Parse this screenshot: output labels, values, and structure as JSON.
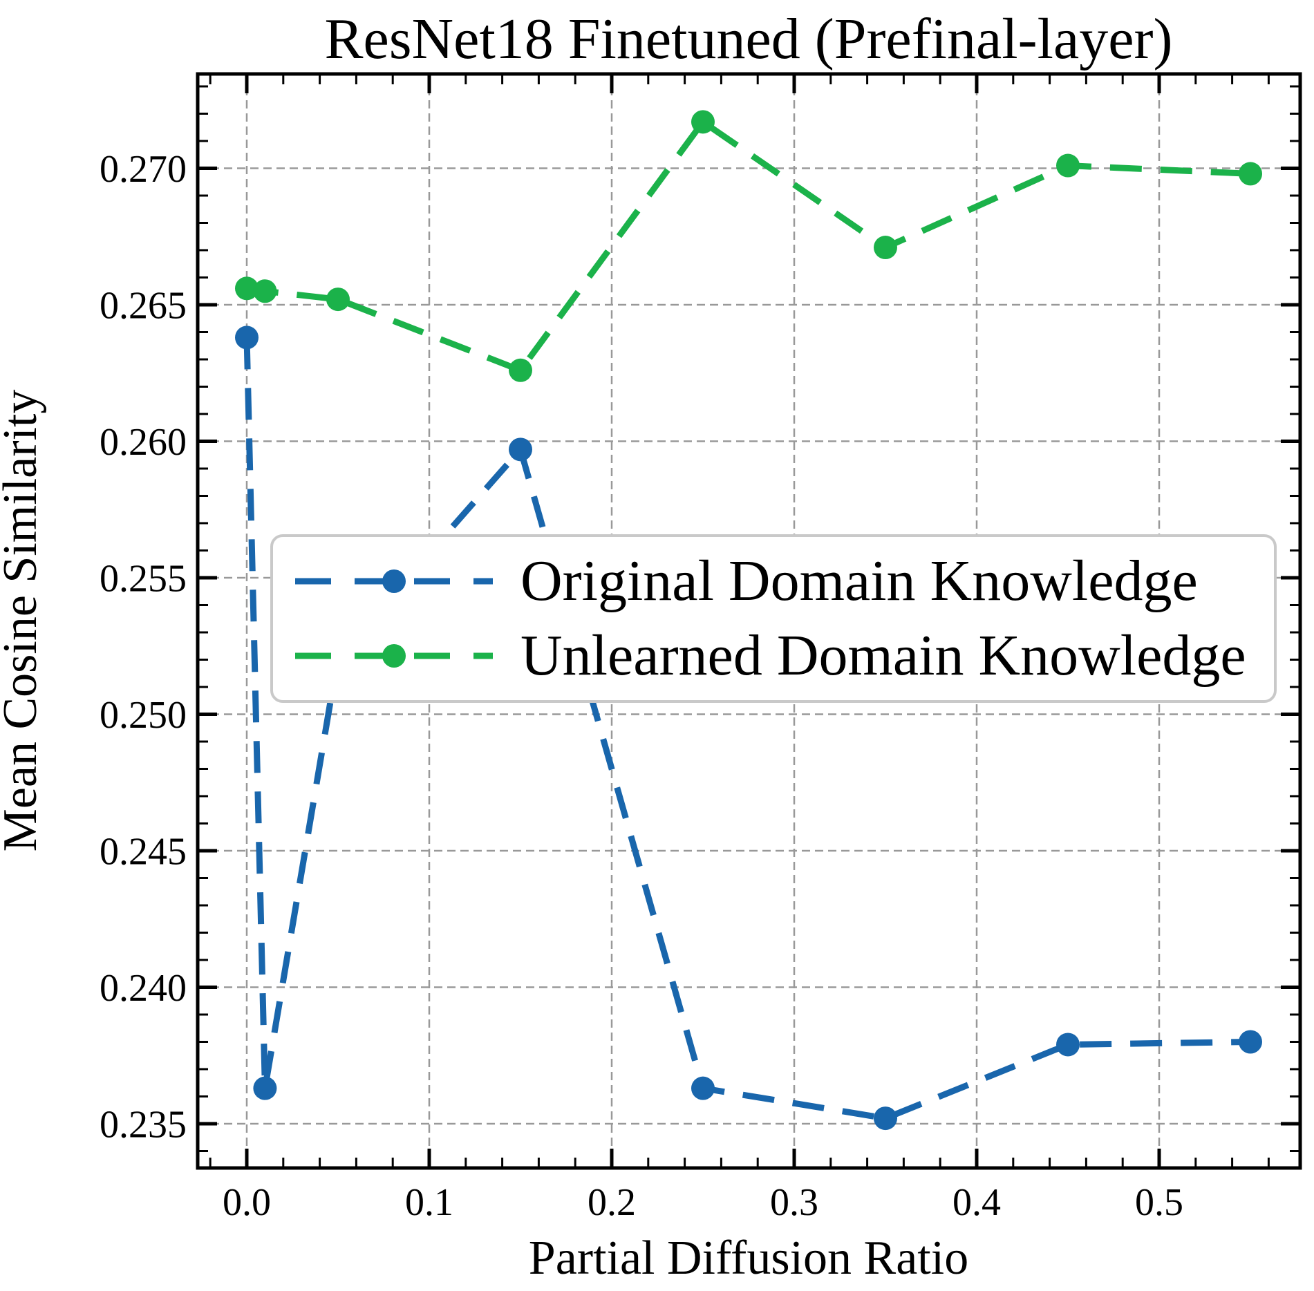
{
  "chart_data": {
    "type": "line",
    "title": "ResNet18 Finetuned (Prefinal-layer)",
    "xlabel": "Partial Diffusion Ratio",
    "ylabel": "Mean Cosine Similarity",
    "x": [
      0.0,
      0.01,
      0.05,
      0.15,
      0.25,
      0.35,
      0.45,
      0.55
    ],
    "series": [
      {
        "name": "Original Domain Knowledge",
        "color": "#1966ac",
        "values": [
          0.2638,
          0.2363,
          0.2521,
          0.2597,
          0.2363,
          0.2352,
          0.2379,
          0.238
        ]
      },
      {
        "name": "Unlearned Domain Knowledge",
        "color": "#1bb24a",
        "values": [
          0.2656,
          0.2655,
          0.2652,
          0.2626,
          0.2717,
          0.2671,
          0.2701,
          0.2698
        ]
      }
    ],
    "x_ticks": [
      0.0,
      0.1,
      0.2,
      0.3,
      0.4,
      0.5
    ],
    "x_tick_labels": [
      "0.0",
      "0.1",
      "0.2",
      "0.3",
      "0.4",
      "0.5"
    ],
    "y_ticks": [
      0.235,
      0.24,
      0.245,
      0.25,
      0.255,
      0.26,
      0.265,
      0.27
    ],
    "y_tick_labels": [
      "0.235",
      "0.240",
      "0.245",
      "0.250",
      "0.255",
      "0.260",
      "0.265",
      "0.270"
    ],
    "xlim": [
      -0.0269,
      0.5773
    ],
    "ylim": [
      0.23338,
      0.27346
    ],
    "minor_tick_step_x": 0.02,
    "minor_tick_step_y": 0.001,
    "grid": true,
    "grid_color": "#999999",
    "line_style": "dashed",
    "marker": "circle",
    "legend_position": "center"
  }
}
